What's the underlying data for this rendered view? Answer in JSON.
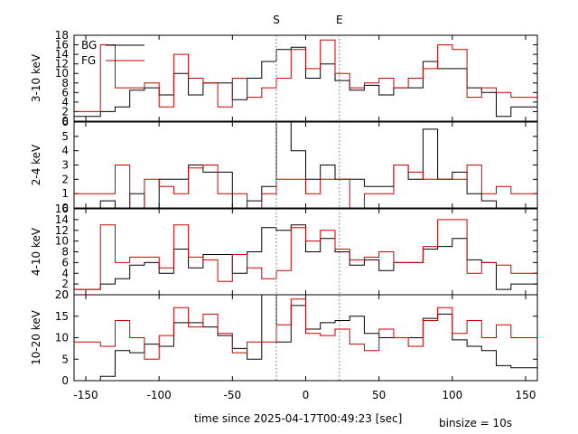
{
  "chart_data": {
    "type": "line",
    "xlabel": "time since 2025-04-17T00:49:23 [sec]",
    "binsize_label": "binsize = 10s",
    "xlim": [
      -158,
      158
    ],
    "x_ticks": [
      -150,
      -100,
      -50,
      0,
      50,
      100,
      150
    ],
    "markers": [
      {
        "label": "S",
        "x": -20
      },
      {
        "label": "E",
        "x": 23
      }
    ],
    "legend": {
      "position": "top-left",
      "entries": [
        {
          "name": "BG",
          "color": "#000000"
        },
        {
          "name": "FG",
          "color": "#cc0000"
        }
      ]
    },
    "bin_edges": [
      -160,
      -150,
      -140,
      -130,
      -120,
      -110,
      -100,
      -90,
      -80,
      -70,
      -60,
      -50,
      -40,
      -30,
      -20,
      -10,
      0,
      10,
      20,
      30,
      40,
      50,
      60,
      70,
      80,
      90,
      100,
      110,
      120,
      130,
      140,
      150,
      160
    ],
    "panels": [
      {
        "ylabel": "3-10 keV",
        "ylim": [
          0,
          18
        ],
        "yticks": [
          0,
          2,
          4,
          6,
          8,
          10,
          12,
          14,
          16,
          18
        ],
        "series": [
          {
            "name": "BG",
            "color": "#000000",
            "values": [
              1,
              1,
              2,
              3,
              6.5,
              7,
              5.5,
              10,
              5.5,
              8,
              8,
              4.5,
              9,
              12.5,
              15,
              15.5,
              9,
              12,
              8.5,
              6.5,
              7.5,
              5.5,
              7,
              7,
              12.5,
              11,
              11,
              7,
              6,
              1,
              3,
              3
            ]
          },
          {
            "name": "FG",
            "color": "#cc0000",
            "values": [
              2,
              2,
              16,
              7,
              7,
              8,
              3,
              14,
              9,
              8,
              3,
              9,
              5,
              7,
              9,
              15,
              11,
              17,
              10,
              7,
              8,
              9,
              7,
              9,
              11,
              16,
              15,
              5,
              7,
              6,
              5,
              5
            ]
          }
        ]
      },
      {
        "ylabel": "2-4 keV",
        "ylim": [
          0,
          6
        ],
        "yticks": [
          0,
          1,
          2,
          3,
          4,
          5,
          6
        ],
        "series": [
          {
            "name": "BG",
            "color": "#000000",
            "values": [
              0,
              0,
              0.5,
              0,
              1,
              0,
              2,
              2,
              3,
              2.5,
              2.5,
              0,
              0.5,
              1.5,
              6,
              4,
              2,
              3,
              2,
              2,
              1.5,
              1.5,
              3,
              2,
              5.5,
              2,
              2.5,
              1,
              0.5,
              0,
              0,
              0
            ]
          },
          {
            "name": "FG",
            "color": "#cc0000",
            "values": [
              1,
              1,
              1,
              3,
              0,
              2,
              1.5,
              1,
              2.8,
              3,
              1,
              1,
              0,
              1,
              2,
              2,
              1,
              2,
              2,
              0,
              1,
              1,
              3,
              2.5,
              2,
              2,
              2,
              3,
              1,
              1.5,
              1,
              1
            ]
          }
        ]
      },
      {
        "ylabel": "4-10 keV",
        "ylim": [
          0,
          16
        ],
        "yticks": [
          0,
          2,
          4,
          6,
          8,
          10,
          12,
          14,
          16
        ],
        "series": [
          {
            "name": "BG",
            "color": "#000000",
            "values": [
              1,
              1,
              2,
              3,
              5.5,
              6,
              4,
              8.5,
              5,
              7.5,
              7.5,
              4,
              8,
              12.5,
              12,
              13,
              8,
              10.5,
              8,
              5.5,
              6.5,
              4.5,
              6,
              6,
              8.5,
              9,
              10.5,
              6.5,
              6,
              1,
              2,
              2
            ]
          },
          {
            "name": "FG",
            "color": "#cc0000",
            "values": [
              1,
              1,
              13,
              6,
              7,
              7,
              5,
              13,
              7,
              6.5,
              2.5,
              7.5,
              5,
              3,
              4.5,
              12.5,
              10,
              12,
              8.5,
              6.5,
              7,
              8,
              6,
              6,
              9,
              14,
              14,
              4,
              6,
              5.5,
              4,
              4
            ]
          }
        ]
      },
      {
        "ylabel": "10-20 keV",
        "ylim": [
          0,
          20
        ],
        "yticks": [
          0,
          5,
          10,
          15,
          20
        ],
        "series": [
          {
            "name": "BG",
            "color": "#000000",
            "values": [
              0,
              0,
              1,
              7,
              6.5,
              8.5,
              8,
              13.5,
              13.5,
              12.5,
              10.5,
              7.5,
              5,
              20,
              9,
              17.5,
              12,
              13.5,
              14,
              15,
              11,
              10,
              10,
              10,
              14.5,
              15.5,
              9.5,
              8,
              7,
              3.5,
              3,
              3
            ]
          },
          {
            "name": "FG",
            "color": "#cc0000",
            "values": [
              9,
              9,
              8,
              14,
              10,
              5,
              10.5,
              17,
              12.5,
              15.5,
              11,
              6.5,
              9,
              9,
              13,
              19,
              11,
              10.5,
              12,
              8.5,
              7,
              12,
              10,
              8,
              14,
              17,
              11,
              14,
              10,
              13,
              10,
              10
            ]
          }
        ]
      }
    ]
  }
}
